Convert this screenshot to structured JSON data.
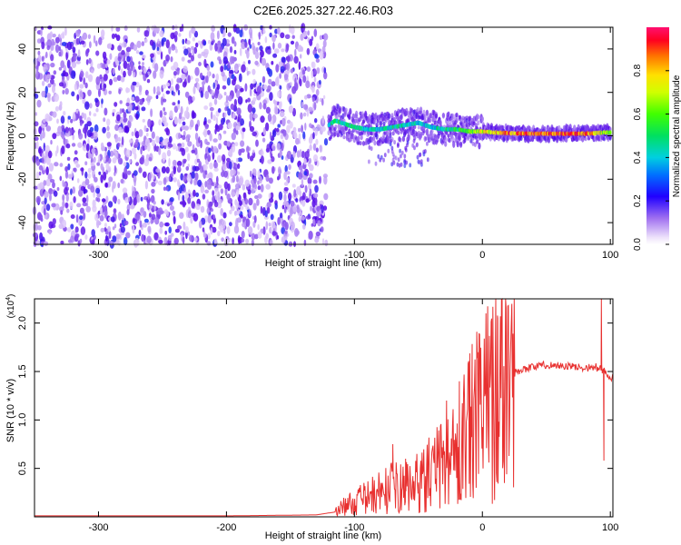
{
  "title": "C2E6.2025.327.22.46.R03",
  "chart_data": [
    {
      "type": "heatmap",
      "xlabel": "Height of straight line (km)",
      "ylabel": "Frequency (Hz)",
      "xlim": [
        -350,
        102
      ],
      "ylim": [
        -50,
        50
      ],
      "xticks": [
        -300,
        -200,
        -100,
        0,
        100
      ],
      "yticks": [
        -40,
        -20,
        0,
        20,
        40
      ],
      "noise_region_x": [
        -350,
        -122
      ],
      "signal_trace": {
        "x": [
          -120,
          -115,
          -110,
          -100,
          -90,
          -80,
          -70,
          -60,
          -50,
          -40,
          -30,
          -20,
          -10,
          0,
          10,
          20,
          40,
          60,
          80,
          95,
          100
        ],
        "frequency_hz": [
          5,
          7,
          6,
          4,
          3,
          3,
          4,
          5,
          6,
          4,
          3,
          3,
          2,
          2,
          1.5,
          1.2,
          1,
          1,
          1,
          1.5,
          1.5
        ],
        "amplitude": [
          0.45,
          0.55,
          0.5,
          0.5,
          0.45,
          0.45,
          0.5,
          0.5,
          0.45,
          0.45,
          0.5,
          0.55,
          0.6,
          0.75,
          0.8,
          0.9,
          0.95,
          0.95,
          0.95,
          0.7,
          0.6
        ]
      },
      "colorbar": {
        "label": "Normalized spectral amplitude",
        "range": [
          0.0,
          1.0
        ],
        "ticks": [
          "0.0",
          "0.2",
          "0.4",
          "0.6",
          "0.8"
        ]
      }
    },
    {
      "type": "line",
      "xlabel": "Height of straight line (km)",
      "ylabel": "SNR (10 * v/v)",
      "y_exponent": "(x10",
      "y_exponent_power": "4",
      "xlim": [
        -350,
        102
      ],
      "ylim": [
        0,
        2.25
      ],
      "xticks": [
        -300,
        -200,
        -100,
        0,
        100
      ],
      "yticks": [
        "0.5",
        "1.0",
        "1.5",
        "2.0"
      ],
      "color": "#e8302f",
      "series": {
        "x": [
          -350,
          -300,
          -200,
          -130,
          -115,
          -110,
          -100,
          -90,
          -80,
          -70,
          -60,
          -50,
          -40,
          -30,
          -20,
          -10,
          0,
          10,
          20,
          30,
          40,
          50,
          60,
          70,
          80,
          90,
          95,
          100,
          102
        ],
        "y": [
          0.01,
          0.01,
          0.01,
          0.02,
          0.05,
          0.1,
          0.15,
          0.2,
          0.25,
          0.3,
          0.3,
          0.35,
          0.45,
          0.55,
          0.7,
          0.9,
          1.1,
          1.35,
          1.45,
          1.52,
          1.55,
          1.57,
          1.56,
          1.55,
          1.54,
          1.54,
          1.5,
          1.42,
          1.42
        ]
      },
      "spike_peaks": [
        {
          "x": -70,
          "y": 0.75
        },
        {
          "x": -60,
          "y": 0.6
        },
        {
          "x": -28,
          "y": 1.2
        },
        {
          "x": -18,
          "y": 1.4
        },
        {
          "x": -8,
          "y": 1.4
        },
        {
          "x": 12,
          "y": 2.05
        },
        {
          "x": 93,
          "y": 2.25
        },
        {
          "x": 95,
          "y": 0.58
        }
      ]
    }
  ],
  "colors": {
    "signal": "#e8302f",
    "noise": "#7a3ad8",
    "frame": "#000000"
  }
}
